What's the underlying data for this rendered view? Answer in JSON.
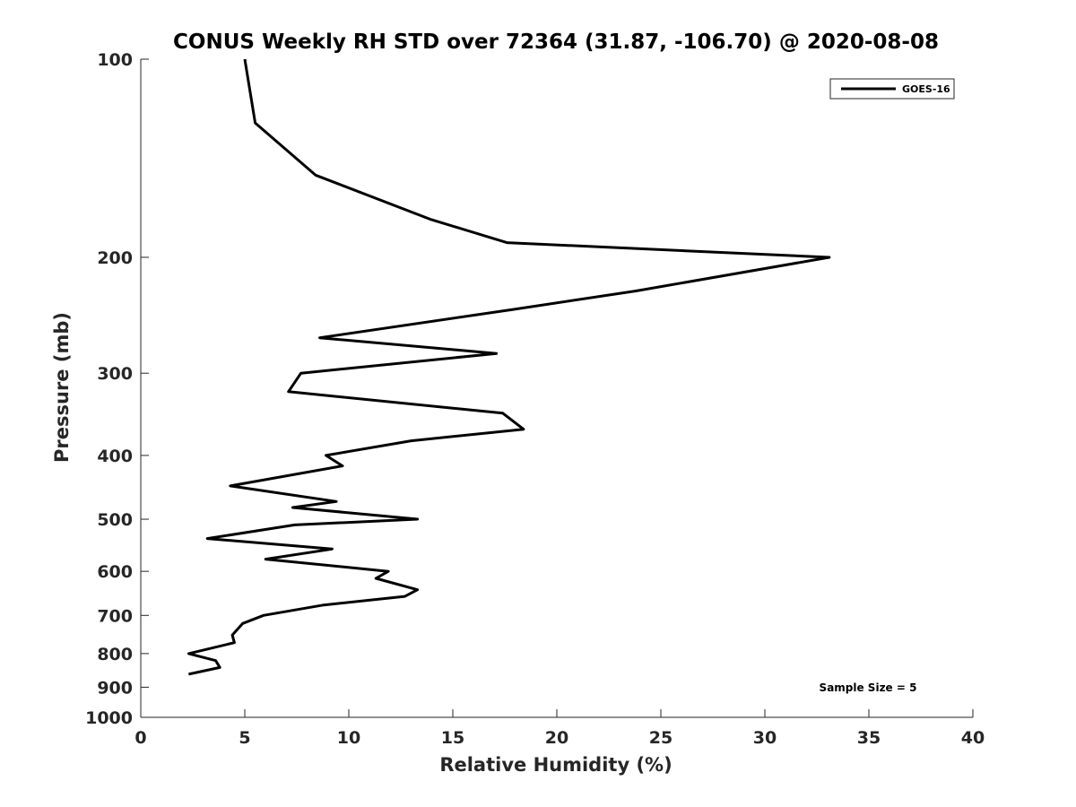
{
  "chart_data": {
    "type": "line",
    "title": "CONUS Weekly RH STD over 72364 (31.87, -106.70) @ 2020-08-08",
    "xlabel": "Relative Humidity (%)",
    "ylabel": "Pressure (mb)",
    "xlim": [
      0,
      40
    ],
    "ylim": [
      100,
      1000
    ],
    "y_scale": "log",
    "y_reversed": true,
    "x_ticks": [
      "0",
      "5",
      "10",
      "15",
      "20",
      "25",
      "30",
      "35",
      "40"
    ],
    "y_ticks": [
      "100",
      "200",
      "300",
      "400",
      "500",
      "600",
      "700",
      "800",
      "900",
      "1000"
    ],
    "grid": false,
    "legend": {
      "position": "top-right",
      "entries": [
        "GOES-16"
      ]
    },
    "annotation": "Sample Size = 5",
    "series": [
      {
        "name": "GOES-16",
        "color": "#000000",
        "points": [
          {
            "x": 5.0,
            "y": 100
          },
          {
            "x": 5.5,
            "y": 125
          },
          {
            "x": 8.4,
            "y": 150
          },
          {
            "x": 13.9,
            "y": 175
          },
          {
            "x": 17.6,
            "y": 190
          },
          {
            "x": 33.1,
            "y": 200
          },
          {
            "x": 23.8,
            "y": 225
          },
          {
            "x": 17.9,
            "y": 240
          },
          {
            "x": 8.6,
            "y": 265
          },
          {
            "x": 17.1,
            "y": 280
          },
          {
            "x": 7.7,
            "y": 300
          },
          {
            "x": 7.1,
            "y": 320
          },
          {
            "x": 17.4,
            "y": 345
          },
          {
            "x": 18.4,
            "y": 365
          },
          {
            "x": 13.0,
            "y": 380
          },
          {
            "x": 8.9,
            "y": 400
          },
          {
            "x": 9.7,
            "y": 415
          },
          {
            "x": 4.3,
            "y": 445
          },
          {
            "x": 9.4,
            "y": 470
          },
          {
            "x": 7.3,
            "y": 480
          },
          {
            "x": 13.3,
            "y": 500
          },
          {
            "x": 7.4,
            "y": 510
          },
          {
            "x": 3.2,
            "y": 535
          },
          {
            "x": 9.2,
            "y": 555
          },
          {
            "x": 6.0,
            "y": 575
          },
          {
            "x": 11.9,
            "y": 600
          },
          {
            "x": 11.3,
            "y": 615
          },
          {
            "x": 13.3,
            "y": 640
          },
          {
            "x": 12.7,
            "y": 655
          },
          {
            "x": 8.8,
            "y": 675
          },
          {
            "x": 5.9,
            "y": 700
          },
          {
            "x": 4.9,
            "y": 720
          },
          {
            "x": 4.4,
            "y": 750
          },
          {
            "x": 4.5,
            "y": 770
          },
          {
            "x": 2.3,
            "y": 800
          },
          {
            "x": 3.6,
            "y": 820
          },
          {
            "x": 3.8,
            "y": 840
          },
          {
            "x": 2.3,
            "y": 860
          }
        ]
      }
    ]
  }
}
